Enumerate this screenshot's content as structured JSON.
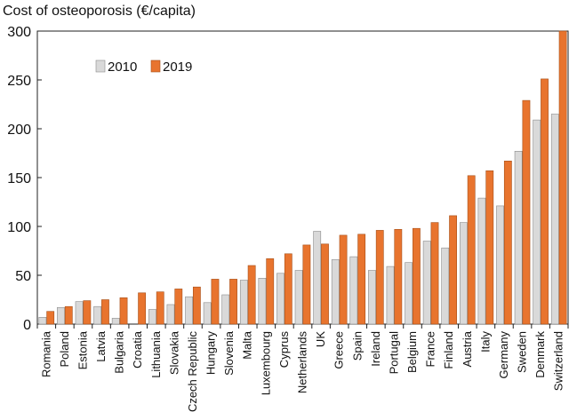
{
  "chart_data": {
    "type": "bar",
    "title": "Cost of osteoporosis (€/capita)",
    "xlabel": "",
    "ylabel": "",
    "ylim": [
      0,
      300
    ],
    "yticks": [
      0,
      50,
      100,
      150,
      200,
      250,
      300
    ],
    "grid": false,
    "legend_position": "top-left",
    "categories": [
      "Romania",
      "Poland",
      "Estonia",
      "Latvia",
      "Bulgaria",
      "Croatia",
      "Lithuania",
      "Slovakia",
      "Czech Republic",
      "Hungary",
      "Slovenia",
      "Malta",
      "Luxembourg",
      "Cyprus",
      "Netherlands",
      "UK",
      "Greece",
      "Spain",
      "Ireland",
      "Portugal",
      "Belgium",
      "France",
      "Finland",
      "Austria",
      "Italy",
      "Germany",
      "Sweden",
      "Denmark",
      "Switzerland"
    ],
    "series": [
      {
        "name": "2010",
        "color": "#d9d9d9",
        "values": [
          7,
          17,
          23,
          18,
          6,
          0,
          15,
          20,
          28,
          22,
          30,
          45,
          47,
          52,
          55,
          95,
          66,
          69,
          55,
          59,
          63,
          85,
          78,
          104,
          129,
          121,
          177,
          209,
          215
        ]
      },
      {
        "name": "2019",
        "color": "#e8742e",
        "values": [
          13,
          18,
          24,
          25,
          27,
          32,
          33,
          36,
          38,
          46,
          46,
          60,
          67,
          72,
          81,
          82,
          91,
          92,
          96,
          97,
          98,
          104,
          111,
          152,
          157,
          167,
          229,
          251,
          300
        ]
      }
    ]
  }
}
